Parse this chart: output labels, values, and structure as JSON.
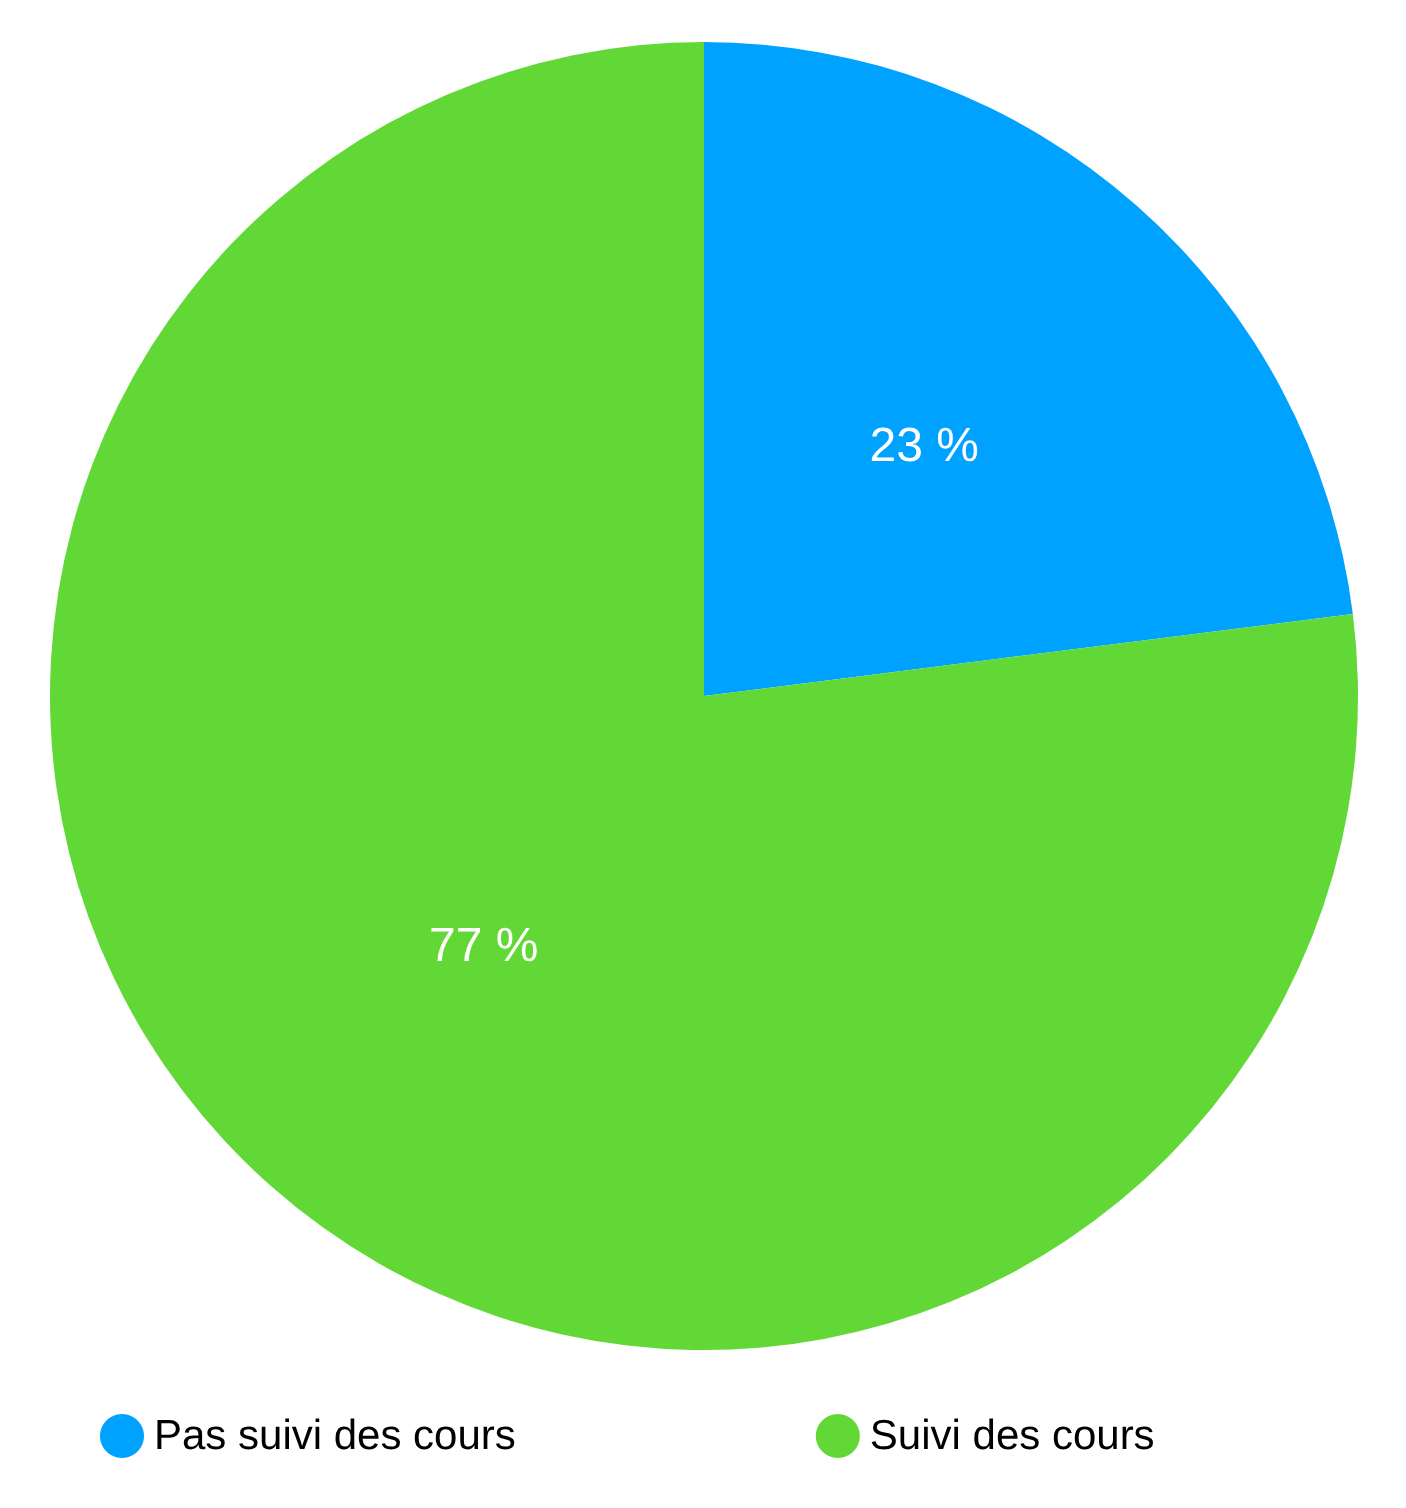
{
  "chart_data": {
    "type": "pie",
    "categories": [
      "Pas suivi des cours",
      "Suivi des cours"
    ],
    "values": [
      23,
      77
    ],
    "colors": [
      "#00a2ff",
      "#61d836"
    ],
    "value_labels": [
      "23 %",
      "77 %"
    ],
    "legend": "bottom"
  }
}
